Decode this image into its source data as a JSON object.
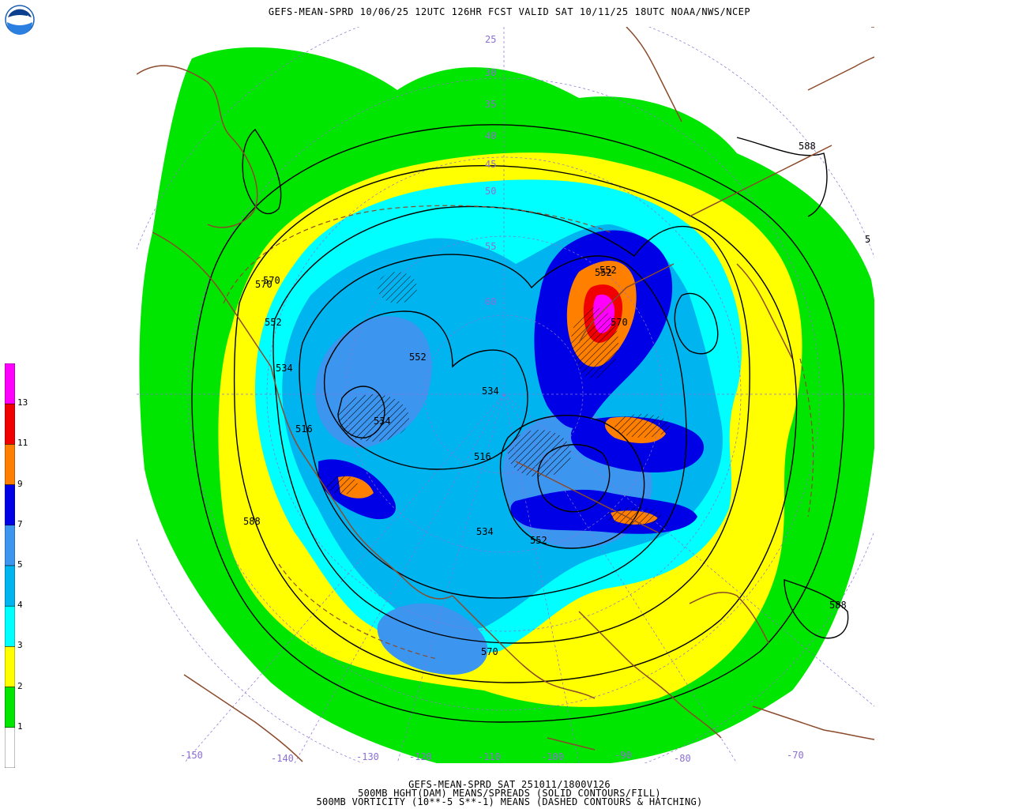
{
  "header": {
    "title": "GEFS-MEAN-SPRD 10/06/25 12UTC 126HR FCST VALID SAT 10/11/25 18UTC NOAA/NWS/NCEP"
  },
  "logo": {
    "icon": "noaa-logo-icon",
    "text": "NOAA"
  },
  "footer": {
    "line1": "GEFS-MEAN-SPRD SAT 251011/1800V126",
    "line2": "500MB HGHT(DAM) MEANS/SPREADS (SOLID CONTOURS/FILL)",
    "line3": "500MB VORTICITY (10**-5 S**-1) MEANS (DASHED CONTOURS & HATCHING)"
  },
  "legend": {
    "colors": [
      "#ffffff",
      "#00e600",
      "#ffff00",
      "#00ffff",
      "#00b4f0",
      "#3c96f0",
      "#0000e6",
      "#ff7f00",
      "#f00000",
      "#ff00ff"
    ],
    "labels": [
      "1",
      "2",
      "3",
      "4",
      "5",
      "7",
      "9",
      "11",
      "13"
    ]
  },
  "contour_labels": [
    {
      "text": "588"
    },
    {
      "text": "570"
    },
    {
      "text": "552"
    },
    {
      "text": "570"
    },
    {
      "text": "552"
    },
    {
      "text": "534"
    },
    {
      "text": "534"
    },
    {
      "text": "516"
    },
    {
      "text": "534"
    },
    {
      "text": "516"
    },
    {
      "text": "552"
    },
    {
      "text": "534"
    },
    {
      "text": "552"
    },
    {
      "text": "570"
    },
    {
      "text": "588"
    },
    {
      "text": "588"
    },
    {
      "text": "552"
    },
    {
      "text": "570"
    },
    {
      "text": "5"
    }
  ],
  "longitude_labels": [
    "-150",
    "-140",
    "-130",
    "-120",
    "-110",
    "-100",
    "-90",
    "-80",
    "-70"
  ],
  "latitude_labels": [
    "25",
    "30",
    "35",
    "40",
    "45",
    "50",
    "55",
    "60"
  ],
  "colors": {
    "contour": "#000000",
    "coast": "#8b4a2b",
    "grid": "#8a6fd4"
  }
}
